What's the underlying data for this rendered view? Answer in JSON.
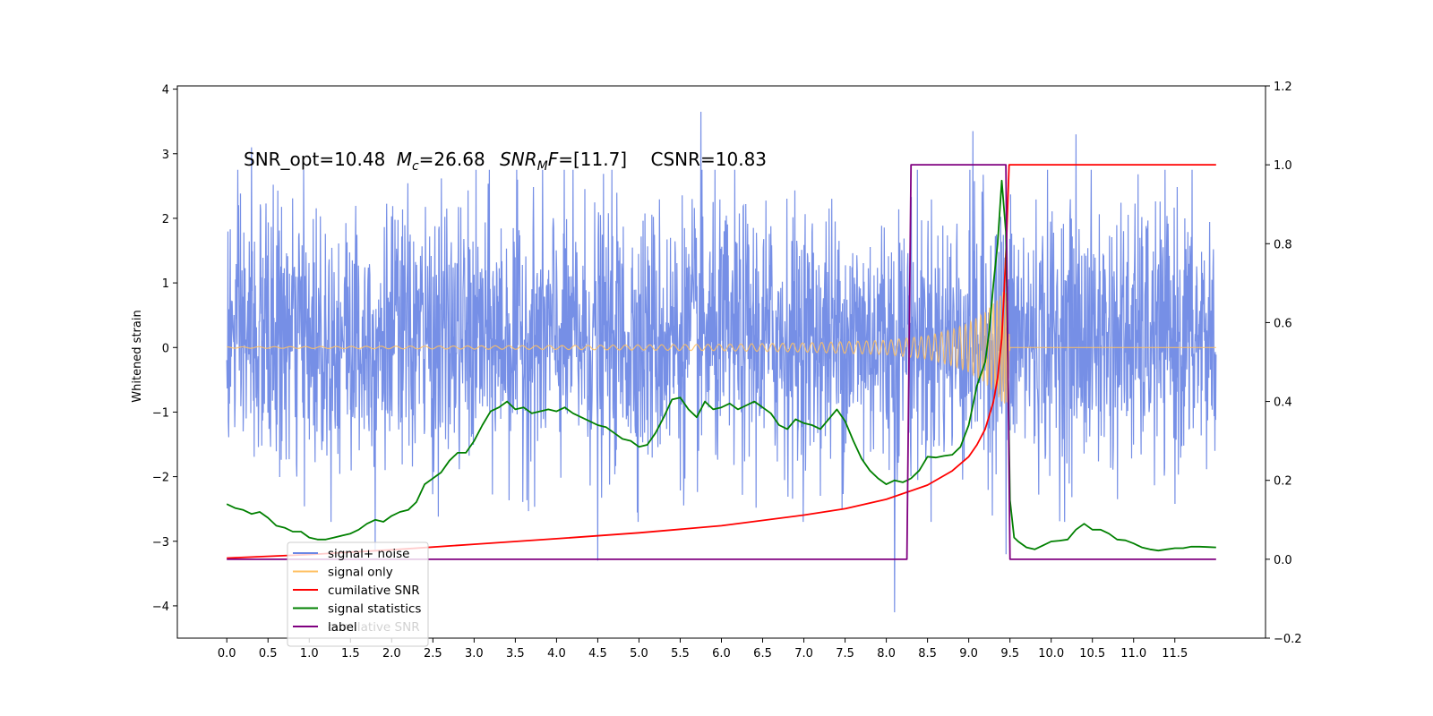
{
  "chart_data": {
    "type": "line",
    "ylabel_left": "Whitened strain",
    "annotation": {
      "snr_opt": "SNR_opt=10.48",
      "mc_symbol": "M",
      "mc_sub": "c",
      "mc_value": "=26.68",
      "snrmf_symbol": "SNR",
      "snrmf_sub": "M",
      "snrmf_f": "F",
      "snrmf_value": "=[11.7]",
      "csnr": "CSNR=10.83"
    },
    "x_ticks": [
      "0.0",
      "0.5",
      "1.0",
      "1.5",
      "2.0",
      "2.5",
      "3.0",
      "3.5",
      "4.0",
      "4.5",
      "5.0",
      "5.5",
      "6.0",
      "6.5",
      "7.0",
      "7.5",
      "8.0",
      "8.5",
      "9.0",
      "9.5",
      "10.0",
      "10.5",
      "11.0",
      "11.5"
    ],
    "y_left_ticks": [
      "4",
      "3",
      "2",
      "1",
      "0",
      "−1",
      "−2",
      "−3",
      "−4"
    ],
    "y_right_ticks": [
      "1.2",
      "1.0",
      "0.8",
      "0.6",
      "0.4",
      "0.2",
      "0.0",
      "−0.2"
    ],
    "xlim": [
      -0.6,
      12.6
    ],
    "ylim_left": [
      -4.5,
      4.05
    ],
    "ylim_right": [
      -0.2,
      1.2
    ],
    "grid": false,
    "legend_position": "lower-left",
    "legend": [
      {
        "label": "signal+ noise",
        "color": "#6a86e4"
      },
      {
        "label": "signal only",
        "color": "#ffc163"
      },
      {
        "label": "cumilative SNR",
        "color": "#ff0000"
      },
      {
        "label": "signal statistics",
        "color": "#008000"
      },
      {
        "label": "label",
        "color": "#800080"
      }
    ],
    "legend_ghost_text": "cumilative SNR",
    "series": {
      "signal_noise": {
        "axis": "left",
        "color": "#6a86e4",
        "x_range": [
          0,
          12
        ],
        "typical_band": [
          -1.7,
          2.0
        ],
        "notable_peaks": [
          [
            5.75,
            3.65
          ],
          [
            9.05,
            3.35
          ],
          [
            10.3,
            3.3
          ],
          [
            9.45,
            3.15
          ],
          [
            0.3,
            3.1
          ],
          [
            8.1,
            -4.1
          ],
          [
            1.8,
            -3.15
          ],
          [
            9.45,
            -3.2
          ],
          [
            4.5,
            -3.3
          ]
        ]
      },
      "signal_only": {
        "axis": "left",
        "color": "#ffc163",
        "envelope": [
          [
            0,
            0.01
          ],
          [
            2,
            0.02
          ],
          [
            4,
            0.03
          ],
          [
            6,
            0.05
          ],
          [
            7,
            0.07
          ],
          [
            7.5,
            0.09
          ],
          [
            8,
            0.11
          ],
          [
            8.5,
            0.18
          ],
          [
            8.8,
            0.28
          ],
          [
            9.0,
            0.38
          ],
          [
            9.2,
            0.55
          ],
          [
            9.35,
            0.75
          ],
          [
            9.43,
            0.9
          ],
          [
            9.47,
            0.85
          ],
          [
            9.5,
            0
          ],
          [
            12,
            0
          ]
        ]
      },
      "cumulative_snr": {
        "axis": "right",
        "color": "#ff0000",
        "points": [
          [
            0,
            0.003
          ],
          [
            1,
            0.012
          ],
          [
            2,
            0.024
          ],
          [
            3,
            0.038
          ],
          [
            4,
            0.052
          ],
          [
            5,
            0.067
          ],
          [
            6,
            0.085
          ],
          [
            7,
            0.112
          ],
          [
            7.5,
            0.128
          ],
          [
            8,
            0.152
          ],
          [
            8.5,
            0.188
          ],
          [
            8.8,
            0.224
          ],
          [
            9,
            0.26
          ],
          [
            9.1,
            0.29
          ],
          [
            9.2,
            0.33
          ],
          [
            9.3,
            0.4
          ],
          [
            9.35,
            0.46
          ],
          [
            9.4,
            0.56
          ],
          [
            9.43,
            0.68
          ],
          [
            9.46,
            0.82
          ],
          [
            9.49,
            1.0
          ],
          [
            12,
            1.0
          ]
        ]
      },
      "signal_statistics": {
        "axis": "right",
        "color": "#008000",
        "points": [
          [
            0,
            0.14
          ],
          [
            0.1,
            0.13
          ],
          [
            0.2,
            0.125
          ],
          [
            0.3,
            0.115
          ],
          [
            0.4,
            0.12
          ],
          [
            0.5,
            0.105
          ],
          [
            0.6,
            0.085
          ],
          [
            0.7,
            0.08
          ],
          [
            0.8,
            0.07
          ],
          [
            0.9,
            0.07
          ],
          [
            1.0,
            0.055
          ],
          [
            1.1,
            0.05
          ],
          [
            1.2,
            0.05
          ],
          [
            1.3,
            0.055
          ],
          [
            1.4,
            0.06
          ],
          [
            1.5,
            0.065
          ],
          [
            1.6,
            0.075
          ],
          [
            1.7,
            0.09
          ],
          [
            1.8,
            0.1
          ],
          [
            1.9,
            0.095
          ],
          [
            2.0,
            0.11
          ],
          [
            2.1,
            0.12
          ],
          [
            2.2,
            0.125
          ],
          [
            2.3,
            0.145
          ],
          [
            2.4,
            0.19
          ],
          [
            2.5,
            0.205
          ],
          [
            2.6,
            0.22
          ],
          [
            2.7,
            0.25
          ],
          [
            2.8,
            0.27
          ],
          [
            2.9,
            0.27
          ],
          [
            3.0,
            0.3
          ],
          [
            3.1,
            0.34
          ],
          [
            3.2,
            0.375
          ],
          [
            3.3,
            0.385
          ],
          [
            3.4,
            0.4
          ],
          [
            3.5,
            0.38
          ],
          [
            3.6,
            0.385
          ],
          [
            3.7,
            0.37
          ],
          [
            3.8,
            0.375
          ],
          [
            3.9,
            0.38
          ],
          [
            4.0,
            0.375
          ],
          [
            4.1,
            0.385
          ],
          [
            4.2,
            0.37
          ],
          [
            4.3,
            0.36
          ],
          [
            4.4,
            0.35
          ],
          [
            4.5,
            0.34
          ],
          [
            4.6,
            0.335
          ],
          [
            4.7,
            0.32
          ],
          [
            4.8,
            0.305
          ],
          [
            4.9,
            0.3
          ],
          [
            5.0,
            0.285
          ],
          [
            5.1,
            0.29
          ],
          [
            5.2,
            0.32
          ],
          [
            5.3,
            0.36
          ],
          [
            5.4,
            0.405
          ],
          [
            5.5,
            0.41
          ],
          [
            5.6,
            0.38
          ],
          [
            5.7,
            0.36
          ],
          [
            5.8,
            0.4
          ],
          [
            5.9,
            0.38
          ],
          [
            6.0,
            0.385
          ],
          [
            6.1,
            0.395
          ],
          [
            6.2,
            0.38
          ],
          [
            6.3,
            0.39
          ],
          [
            6.4,
            0.4
          ],
          [
            6.5,
            0.385
          ],
          [
            6.6,
            0.37
          ],
          [
            6.7,
            0.34
          ],
          [
            6.8,
            0.33
          ],
          [
            6.9,
            0.355
          ],
          [
            7.0,
            0.345
          ],
          [
            7.1,
            0.34
          ],
          [
            7.2,
            0.33
          ],
          [
            7.3,
            0.355
          ],
          [
            7.4,
            0.38
          ],
          [
            7.5,
            0.35
          ],
          [
            7.6,
            0.3
          ],
          [
            7.7,
            0.255
          ],
          [
            7.8,
            0.225
          ],
          [
            7.9,
            0.205
          ],
          [
            8.0,
            0.19
          ],
          [
            8.1,
            0.2
          ],
          [
            8.2,
            0.195
          ],
          [
            8.3,
            0.205
          ],
          [
            8.4,
            0.225
          ],
          [
            8.5,
            0.26
          ],
          [
            8.6,
            0.258
          ],
          [
            8.7,
            0.262
          ],
          [
            8.8,
            0.265
          ],
          [
            8.9,
            0.285
          ],
          [
            9.0,
            0.34
          ],
          [
            9.1,
            0.44
          ],
          [
            9.2,
            0.5
          ],
          [
            9.25,
            0.58
          ],
          [
            9.3,
            0.7
          ],
          [
            9.35,
            0.8
          ],
          [
            9.4,
            0.96
          ],
          [
            9.45,
            0.83
          ],
          [
            9.5,
            0.15
          ],
          [
            9.55,
            0.055
          ],
          [
            9.6,
            0.045
          ],
          [
            9.7,
            0.03
          ],
          [
            9.8,
            0.025
          ],
          [
            9.9,
            0.035
          ],
          [
            10.0,
            0.045
          ],
          [
            10.1,
            0.047
          ],
          [
            10.2,
            0.05
          ],
          [
            10.3,
            0.075
          ],
          [
            10.4,
            0.09
          ],
          [
            10.5,
            0.075
          ],
          [
            10.6,
            0.075
          ],
          [
            10.7,
            0.065
          ],
          [
            10.8,
            0.05
          ],
          [
            10.9,
            0.048
          ],
          [
            11.0,
            0.04
          ],
          [
            11.1,
            0.03
          ],
          [
            11.2,
            0.025
          ],
          [
            11.3,
            0.022
          ],
          [
            11.4,
            0.025
          ],
          [
            11.5,
            0.028
          ],
          [
            11.6,
            0.028
          ],
          [
            11.7,
            0.032
          ],
          [
            11.8,
            0.032
          ],
          [
            11.9,
            0.031
          ],
          [
            12.0,
            0.03
          ]
        ]
      },
      "label": {
        "axis": "right",
        "color": "#800080",
        "points": [
          [
            0,
            0
          ],
          [
            8.25,
            0
          ],
          [
            8.3,
            1
          ],
          [
            9.45,
            1
          ],
          [
            9.5,
            0
          ],
          [
            12,
            0
          ]
        ]
      }
    }
  }
}
